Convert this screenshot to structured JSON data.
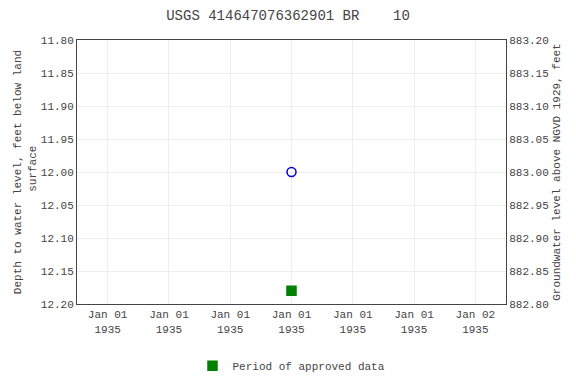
{
  "chart_data": {
    "type": "scatter",
    "title": "USGS 414647076362901 BR    10",
    "ylabel": "Depth to water level, feet below land\n surface",
    "y2label": "Groundwater level above NGVD 1929, feet",
    "categories": [
      "Jan 01\n1935",
      "Jan 01\n1935",
      "Jan 01\n1935",
      "Jan 01\n1935",
      "Jan 01\n1935",
      "Jan 01\n1935",
      "Jan 02\n1935"
    ],
    "series": [
      {
        "color": "#0000cc",
        "marker": "circle-open",
        "values": [
          null,
          null,
          null,
          12.0,
          null,
          null,
          null
        ]
      },
      {
        "name": "Period of approved data",
        "color": "#008000",
        "marker": "square",
        "values": [
          null,
          null,
          null,
          12.18,
          null,
          null,
          null
        ]
      }
    ],
    "ylim": [
      12.2,
      11.8
    ],
    "yticks": [
      {
        "value": 11.8,
        "label": "11.80"
      },
      {
        "value": 11.85,
        "label": "11.85"
      },
      {
        "value": 11.9,
        "label": "11.90"
      },
      {
        "value": 11.95,
        "label": "11.95"
      },
      {
        "value": 12.0,
        "label": "12.00"
      },
      {
        "value": 12.05,
        "label": "12.05"
      },
      {
        "value": 12.1,
        "label": "12.10"
      },
      {
        "value": 12.15,
        "label": "12.15"
      },
      {
        "value": 12.2,
        "label": "12.20"
      }
    ],
    "y2lim": [
      882.8,
      883.2
    ],
    "y2ticks": [
      {
        "value": 882.8,
        "label": "882.80"
      },
      {
        "value": 882.85,
        "label": "882.85"
      },
      {
        "value": 882.9,
        "label": "882.90"
      },
      {
        "value": 882.95,
        "label": "882.95"
      },
      {
        "value": 883.0,
        "label": "883.00"
      },
      {
        "value": 883.05,
        "label": "883.05"
      },
      {
        "value": 883.1,
        "label": "883.10"
      },
      {
        "value": 883.15,
        "label": "883.15"
      },
      {
        "value": 883.2,
        "label": "883.20"
      }
    ],
    "grid": true,
    "legend": "bottom"
  }
}
